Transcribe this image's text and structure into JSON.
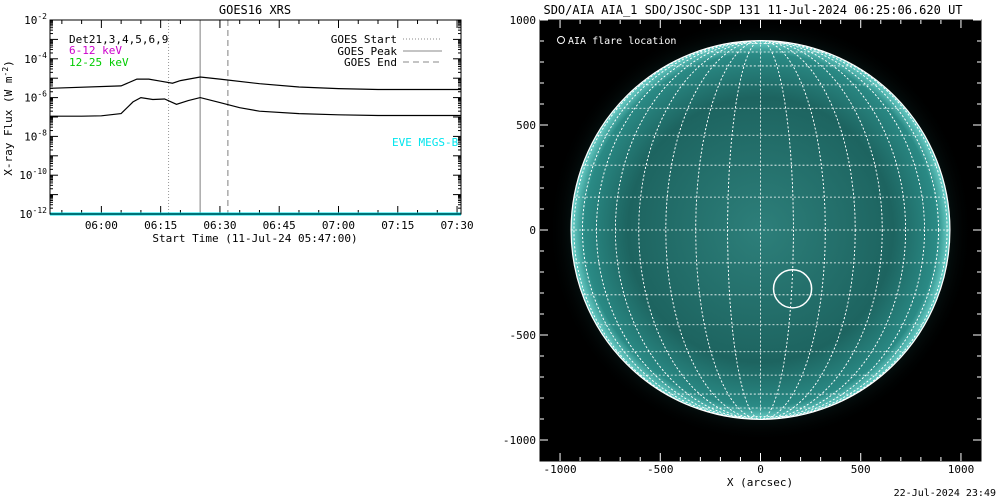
{
  "goes": {
    "title": "GOES16 XRS",
    "ylabel_main": "X-ray Flux (W m",
    "ylabel_exp": "-2",
    "ylabel_close": ")",
    "xlabel": "Start Time (11-Jul-24 05:47:00)",
    "legend_channels": [
      {
        "text": "Det21,3,4,5,6,9",
        "color": "#000000"
      },
      {
        "text": "6-12 keV",
        "color": "#cc00cc"
      },
      {
        "text": "12-25 keV",
        "color": "#00cc00"
      }
    ],
    "legend_lines": [
      {
        "text": "GOES Start",
        "style": "dotted"
      },
      {
        "text": "GOES Peak",
        "style": "solid"
      },
      {
        "text": "GOES End",
        "style": "dashed"
      }
    ],
    "eve_label": "EVE MEGS-B",
    "eve_color": "#00e5ee"
  },
  "aia": {
    "title": "SDO/AIA AIA_1 SDO/JSOC-SDP 131 11-Jul-2024 06:25:06.620 UT",
    "legend": "AIA flare location",
    "xlabel": "X (arcsec)",
    "timestamp": "22-Jul-2024 23:49"
  },
  "chart_data": [
    {
      "type": "line",
      "title": "GOES16 XRS",
      "xlabel": "Start Time (11-Jul-24 05:47:00)",
      "ylabel": "X-ray Flux (W m^-2)",
      "yscale": "log",
      "xlim": [
        "05:47",
        "07:31"
      ],
      "ylim": [
        1e-12,
        0.01
      ],
      "x_ticks": [
        "06:00",
        "06:15",
        "06:30",
        "06:45",
        "07:00",
        "07:15",
        "07:30"
      ],
      "y_tick_exponents": [
        -12,
        -10,
        -8,
        -6,
        -4,
        -2
      ],
      "vlines": {
        "goes_start": "06:17",
        "goes_peak": "06:25",
        "goes_end": "06:32"
      },
      "series": [
        {
          "name": "upper",
          "x": [
            "05:47",
            "06:05",
            "06:09",
            "06:12",
            "06:15",
            "06:18",
            "06:20",
            "06:25",
            "06:30",
            "06:40",
            "06:50",
            "07:00",
            "07:10",
            "07:20",
            "07:31"
          ],
          "y": [
            3e-06,
            4e-06,
            9e-06,
            9e-06,
            7e-06,
            5.5e-06,
            7.5e-06,
            1.15e-05,
            9e-06,
            5.2e-06,
            3.5e-06,
            2.9e-06,
            2.6e-06,
            2.6e-06,
            2.6e-06
          ]
        },
        {
          "name": "lower",
          "x": [
            "05:47",
            "05:55",
            "06:00",
            "06:05",
            "06:08",
            "06:10",
            "06:13",
            "06:16",
            "06:19",
            "06:22",
            "06:25",
            "06:30",
            "06:35",
            "06:40",
            "06:50",
            "07:00",
            "07:10",
            "07:20",
            "07:31"
          ],
          "y": [
            1.1e-07,
            1.1e-07,
            1.15e-07,
            1.5e-07,
            6e-07,
            1e-06,
            8e-07,
            8.5e-07,
            4.5e-07,
            7e-07,
            1e-06,
            5.5e-07,
            3e-07,
            2e-07,
            1.5e-07,
            1.3e-07,
            1.2e-07,
            1.2e-07,
            1.2e-07
          ]
        },
        {
          "name": "EVE MEGS-B",
          "x": [
            "05:47",
            "07:31"
          ],
          "y": [
            1e-12,
            1e-12
          ]
        }
      ]
    },
    {
      "type": "scatter",
      "title": "SDO/AIA AIA_1 SDO/JSOC-SDP 131 11-Jul-2024 06:25:06.620 UT",
      "xlabel": "X (arcsec)",
      "xlim": [
        -1100,
        1100
      ],
      "ylim": [
        -1100,
        1000
      ],
      "x_ticks": [
        -1000,
        -500,
        0,
        500,
        1000
      ],
      "y_ticks": [
        -1000,
        -500,
        0,
        500,
        1000
      ],
      "solar_radius_arcsec": 945,
      "flare_location": {
        "x": 160,
        "y": -280,
        "radius": 95
      }
    }
  ]
}
